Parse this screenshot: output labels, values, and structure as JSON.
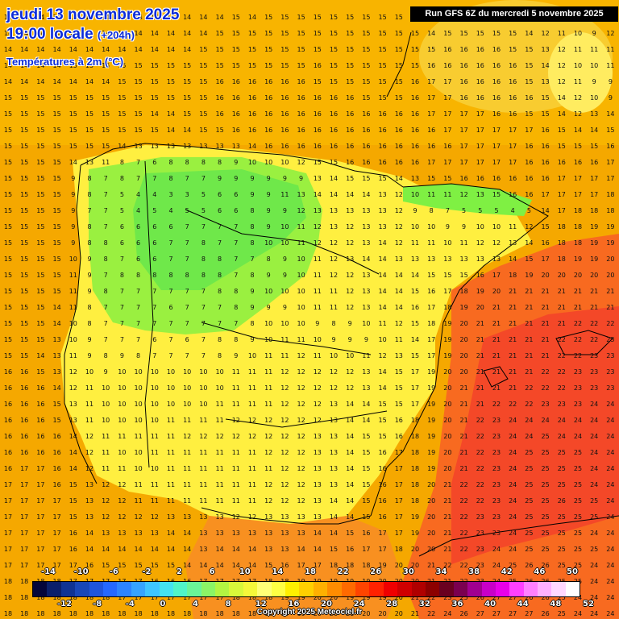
{
  "header": {
    "date": "jeudi 13 novembre 2025",
    "time": "19:00 locale",
    "offset": "(+204h)",
    "variable": "Températures à 2m (°C)",
    "run": "Run GFS 6Z du mercredi 5 novembre 2025"
  },
  "grid_rows": [
    "14 14 14 14 14 14 14 14 14 14 14 14 14 14 15 14 15 15 15 15 15 15 15 15 15 14 14 15 15 15 14 13 13 13 12 10 13 13",
    "14 14 14 14 14 14 14 14 14 14 14 14 14 15 15 15 15 15 15 15 15 15 15 15 15 15 14 15 15 15 15 15 14 12 11 10 9 12",
    "14 14 14 14 14 14 14 14 14 14 14 14 15 15 15 15 15 15 15 15 15 15 15 15 15 15 15 16 16 16 16 15 15 13 12 11 11 11",
    "14 14 14 14 15 15 15 15 15 15 15 15 15 15 15 15 15 15 15 16 15 15 15 15 15 15 16 16 16 16 16 16 15 14 12 10 10 11",
    "14 14 14 14 14 14 14 15 15 15 15 15 15 16 16 16 16 16 16 15 15 15 15 15 15 16 17 17 16 16 16 16 15 13 12 11 9 9",
    "15 15 15 15 15 15 15 15 15 15 15 15 15 16 16 16 16 16 16 16 16 16 15 15 15 16 17 17 16 16 16 16 16 15 14 12 10 9",
    "15 15 15 15 15 15 15 15 15 14 14 15 15 16 16 16 16 16 16 16 16 16 16 16 16 16 17 17 17 17 16 16 15 15 14 12 13 14",
    "15 15 15 15 15 15 15 15 15 15 14 14 15 15 16 16 16 16 16 16 16 16 16 16 16 16 16 17 17 17 17 17 17 16 15 14 14 15",
    "15 15 15 15 15 15 15 14 13 13 13 13 13 13 13 14 16 16 16 16 16 16 16 16 16 16 16 16 17 17 17 17 16 16 15 15 15 16",
    "15 15 15 15 14 13 11 8 7 6 8 8 8 8 9 10 10 10 12 15 15 16 16 16 16 16 17 17 17 17 17 17 16 16 16 16 16 17",
    "15 15 15 15 9 8 7 8 7 7 8 7 7 9 9 9 9 9 9 13 14 15 15 15 14 13 15 15 16 16 16 16 16 16 17 17 17 17",
    "15 15 15 15 9 8 7 5 4 4 3 3 5 6 6 9 9 11 13 14 14 14 14 13 12 10 11 11 12 13 15 16 16 17 17 17 17 18",
    "15 15 15 15 9 7 7 5 4 5 4 5 5 6 6 8 9 9 12 13 13 13 13 13 12 9 8 7 5 5 5 4 5 14 17 18 18 18",
    "15 15 15 15 9 8 7 6 6 6 6 7 7 7 7 8 9 10 11 12 13 12 13 13 12 10 10 9 9 10 10 11 12 15 18 18 19 19",
    "15 15 15 15 9 8 8 6 6 6 7 7 8 7 7 8 10 10 11 12 12 12 13 14 12 11 11 10 11 12 12 13 14 16 18 18 19 19",
    "15 15 15 15 10 9 8 7 6 6 7 7 8 8 7 7 8 9 10 11 12 13 14 14 13 13 13 13 13 13 13 14 15 17 18 19 19 20",
    "15 15 15 15 11 9 7 8 8 8 8 8 8 8 7 8 9 9 10 11 12 12 13 14 14 14 15 15 15 16 17 18 19 20 20 20 20 20",
    "15 15 15 15 11 9 8 7 7 7 7 7 7 8 8 9 10 10 10 11 11 12 13 14 14 15 16 17 18 19 20 21 21 21 21 21 21 21",
    "15 15 15 14 11 8 7 7 7 7 6 7 7 7 8 9 9 9 10 11 11 12 13 14 14 16 17 18 19 20 21 21 21 21 21 21 21 21",
    "15 15 15 14 10 8 7 7 7 7 7 7 7 7 7 8 10 10 10 9 8 9 10 11 12 15 18 19 20 21 21 21 21 21 21 22 22 22",
    "15 15 15 13 10 9 7 7 7 6 7 6 7 8 8 9 10 11 11 10 9 9 9 10 11 14 17 19 20 21 21 21 21 21 22 22 22 23",
    "15 15 14 13 11 9 8 9 8 7 7 7 7 8 9 10 11 11 12 11 10 10 11 12 13 15 17 19 20 21 21 21 21 21 22 22 23 23",
    "16 16 15 13 12 10 9 10 10 10 10 10 10 10 11 11 11 12 12 12 12 12 13 14 15 17 19 20 20 21 21 21 21 22 22 23 23 23",
    "16 16 16 14 12 11 10 10 10 10 10 10 10 10 11 11 11 12 12 12 12 12 13 14 15 17 19 20 21 21 21 21 22 22 22 23 23 23",
    "16 16 16 15 13 11 10 10 10 10 10 10 10 11 11 11 11 12 12 12 13 14 14 15 15 17 19 20 21 21 22 22 22 23 23 23 24 24",
    "16 16 16 15 13 11 10 10 10 10 11 11 11 11 12 12 12 12 12 12 13 14 14 15 16 18 19 20 21 22 23 24 24 24 24 24 24 24",
    "16 16 16 16 14 12 11 11 11 11 11 12 12 12 12 12 12 12 12 13 13 14 15 15 16 18 19 20 21 22 23 24 24 25 24 24 24 24",
    "16 16 16 16 14 12 11 10 10 11 11 11 11 11 11 11 12 12 12 13 13 14 15 16 17 18 19 20 21 22 23 24 25 25 25 25 24 24",
    "16 17 17 16 14 12 11 11 10 10 11 11 11 11 11 11 11 12 12 13 13 14 15 16 17 18 19 20 21 22 23 24 25 25 25 25 24 24",
    "17 17 17 16 15 13 12 12 11 11 11 11 11 11 11 11 12 12 12 13 13 14 15 16 17 18 20 21 22 22 23 24 25 25 25 25 24 24",
    "17 17 17 17 15 13 12 12 11 11 11 11 11 11 11 11 12 12 12 13 14 14 15 16 17 18 20 21 22 22 23 24 25 25 26 25 25 24",
    "17 17 17 17 15 13 12 12 12 12 13 13 13 13 12 12 13 13 13 13 14 14 15 16 17 19 20 21 22 23 23 24 25 25 25 25 25 24",
    "17 17 17 17 16 14 13 13 13 13 14 14 13 13 13 13 13 13 13 14 14 15 16 17 17 19 20 21 22 23 23 24 25 25 25 25 24 24",
    "17 17 17 17 16 14 14 14 14 14 14 14 13 14 14 14 13 13 14 14 15 16 17 17 18 20 20 21 22 23 24 24 25 25 25 25 25 24",
    "17 17 17 17 17 16 15 15 15 15 15 14 14 14 14 14 15 16 17 17 18 18 18 19 20 20 21 22 22 23 24 25 26 26 25 25 24 24",
    "18 18 18 18 17 17 17 17 17 16 16 16 17 17 17 17 18 18 19 19 19 19 19 20 20 20 21 21 22 23 24 25 26 26 25 25 24 24",
    "18 18 18 18 18 18 18 17 17 17 17 17 17 17 18 18 18 19 19 20 20 19 19 19 20 21 22 23 25 26 27 27 26 26 25 24 24 24",
    "18 18 18 18 18 18 18 18 18 18 18 18 18 18 18 18 18 19 19 20 20 21 20 20 20 21 22 24 26 27 27 27 27 26 25 24 24 24",
    "18 18 18 18 18 18 18 18 18 18 18 18 18 18 18 18 18 19 19 20 20 21 20 20 20 21 22 24 26 27 27 27 27 26 25 24 24 24"
  ],
  "zones": {
    "water_colors": [
      "#f7a600",
      "#f7a600"
    ],
    "green_fill": "#7ff043",
    "yellow_fill": "#ffff55",
    "land_yellow": "#e8f040",
    "red_fill": "#f84820",
    "orange_fill": "#f58a10"
  },
  "legend": {
    "top_ticks": [
      "-14",
      "-10",
      "-6",
      "-2",
      "2",
      "6",
      "10",
      "14",
      "18",
      "22",
      "26",
      "30",
      "34",
      "38",
      "42",
      "46",
      "50"
    ],
    "bottom_ticks": [
      "-12",
      "-8",
      "-4",
      "0",
      "4",
      "8",
      "12",
      "16",
      "20",
      "24",
      "28",
      "32",
      "36",
      "40",
      "44",
      "48",
      "52"
    ],
    "colors": [
      "#04063a",
      "#0a1f6a",
      "#0f3393",
      "#1847b8",
      "#1f55dd",
      "#2568ff",
      "#2d84ff",
      "#36a3ff",
      "#3ec5ff",
      "#44e3f0",
      "#50f5c8",
      "#6af598",
      "#8bf566",
      "#b3f542",
      "#d8f83a",
      "#f5f83a",
      "#ffff77",
      "#ffff44",
      "#fff000",
      "#ffd000",
      "#ffb000",
      "#ff8c00",
      "#ff6a00",
      "#ff4400",
      "#ff2200",
      "#f00000",
      "#d00000",
      "#b00000",
      "#8c0000",
      "#6a0020",
      "#7a0050",
      "#a00090",
      "#c800c8",
      "#e800e8",
      "#ff40ff",
      "#ff80ff",
      "#ffb0ff",
      "#ffd8ff",
      "#ffffff"
    ]
  },
  "copyright": "Copyright 2025 Meteociel.fr"
}
